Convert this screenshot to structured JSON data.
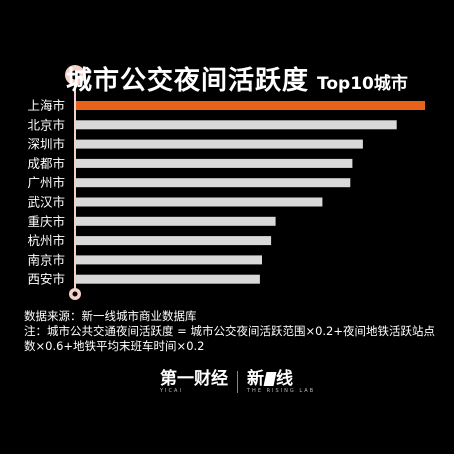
{
  "title": {
    "main": "城市公交夜间活跃度",
    "sub": "Top10城市"
  },
  "colors": {
    "background": "#000000",
    "highlight_bar": "#E8621A",
    "default_bar": "#D9D9D9",
    "marker_ring": "#F5D2C8",
    "text": "#FFFFFF"
  },
  "chart_data": {
    "type": "bar",
    "orientation": "horizontal",
    "categories": [
      "上海市",
      "北京市",
      "深圳市",
      "成都市",
      "广州市",
      "武汉市",
      "重庆市",
      "杭州市",
      "南京市",
      "西安市"
    ],
    "values": [
      100,
      91.9,
      82.2,
      79.2,
      78.6,
      70.6,
      57.2,
      55.9,
      53.3,
      52.7
    ],
    "highlight_index": 0,
    "xlim": [
      0,
      100
    ],
    "grid": false,
    "legend": "none"
  },
  "notes": {
    "source": "数据来源：新一线城市商业数据库",
    "formula": "注：城市公共交通夜间活跃度 = 城市公交夜间活跃范围×0.2+夜间地铁活跃站点数×0.6+地铁平均末班车时间×0.2"
  },
  "footer": {
    "logo1": "第一财经",
    "logo1_sub": "YICAI",
    "logo2_a": "新",
    "logo2_b": "线",
    "logo2_sub": "THE RISING LAB"
  }
}
